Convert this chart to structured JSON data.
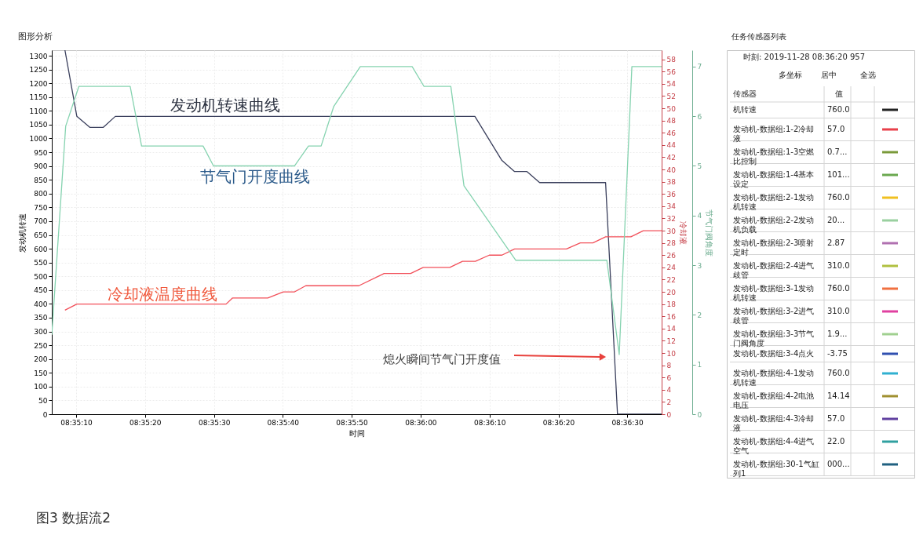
{
  "chart_data": [
    {
      "type": "line",
      "title": "图形分析",
      "xlabel": "时间",
      "ylabel": "发动机转速",
      "y2label": "冷却液",
      "y3label": "节气门阀角度",
      "xlim": [
        8.58513,
        8.60972
      ],
      "xticks": [
        {
          "value": 8.58611,
          "label": "08:35:10"
        },
        {
          "value": 8.58889,
          "label": "08:35:20"
        },
        {
          "value": 8.59167,
          "label": "08:35:30"
        },
        {
          "value": 8.59444,
          "label": "08:35:40"
        },
        {
          "value": 8.59722,
          "label": "08:35:50"
        },
        {
          "value": 8.6,
          "label": "08:36:00"
        },
        {
          "value": 8.60278,
          "label": "08:36:10"
        },
        {
          "value": 8.60556,
          "label": "08:36:20"
        },
        {
          "value": 8.60833,
          "label": "08:36:30"
        }
      ],
      "ylim": [
        0,
        1320
      ],
      "yticks": [
        0,
        50,
        100,
        150,
        200,
        250,
        300,
        350,
        400,
        450,
        500,
        550,
        600,
        650,
        700,
        750,
        800,
        850,
        900,
        950,
        1000,
        1050,
        1100,
        1150,
        1200,
        1250,
        1300
      ],
      "y2lim": [
        0,
        59.5
      ],
      "y2ticks": [
        0,
        2,
        4,
        6,
        8,
        10,
        12,
        14,
        16,
        18,
        20,
        22,
        24,
        26,
        28,
        30,
        32,
        34,
        36,
        38,
        40,
        42,
        44,
        46,
        48,
        50,
        52,
        54,
        56,
        58
      ],
      "y3lim": [
        0,
        7.33
      ],
      "y3ticks": [
        0,
        1,
        2,
        3,
        4,
        5,
        6,
        7
      ],
      "grid": true,
      "series": [
        {
          "name": "发动机转速曲线",
          "color": "#3a3f5c",
          "x": [
            8.58566,
            8.58614,
            8.58667,
            8.5872,
            8.58769,
            8.60219,
            8.60328,
            8.60379,
            8.60429,
            8.6048,
            8.60746,
            8.60794,
            8.60972
          ],
          "values": [
            1320,
            1080,
            1040,
            1040,
            1080,
            1080,
            920,
            880,
            880,
            840,
            840,
            0,
            0
          ]
        },
        {
          "name": "冷却液温度曲线",
          "color": "#f2505a",
          "axis": "y2",
          "x": [
            8.58566,
            8.58614,
            8.59216,
            8.59242,
            8.59384,
            8.59446,
            8.59492,
            8.59537,
            8.59751,
            8.59853,
            8.5996,
            8.60011,
            8.60118,
            8.60169,
            8.60221,
            8.60277,
            8.60328,
            8.60379,
            8.60588,
            8.60644,
            8.60695,
            8.60746,
            8.60848,
            8.60898,
            8.60972
          ],
          "values": [
            17,
            18,
            18,
            19,
            19,
            20,
            20,
            21,
            21,
            23,
            23,
            24,
            24,
            25,
            25,
            26,
            26,
            27,
            27,
            28,
            28,
            29,
            29,
            30,
            30
          ]
        },
        {
          "name": "节气门开度曲线",
          "color": "#86d3b0",
          "axis": "y3",
          "x": [
            8.58513,
            8.58569,
            8.58622,
            8.58829,
            8.58875,
            8.59123,
            8.59165,
            8.59492,
            8.59548,
            8.59599,
            8.5965,
            8.59757,
            8.59966,
            8.60014,
            8.60122,
            8.60175,
            8.60384,
            8.60751,
            8.60801,
            8.60852,
            8.60972
          ],
          "values": [
            1.6,
            5.8,
            6.6,
            6.6,
            5.4,
            5.4,
            5.0,
            5.0,
            5.4,
            5.4,
            6.2,
            7.0,
            7.0,
            6.6,
            6.6,
            4.6,
            3.1,
            3.1,
            1.2,
            7.0,
            7.0
          ]
        }
      ],
      "annotations": [
        "熄火瞬间节气门开度值",
        "图3 数据流2"
      ]
    },
    {
      "type": "other",
      "title": "任务传感器列表",
      "subtitle": "时刻: 2019-11-28 08:36:20 957",
      "annotations": [
        "多坐标",
        "居中",
        "全选",
        "传感器",
        "值"
      ],
      "categories": [
        "机转速",
        "发动机-数据组:1-2冷却液",
        "发动机-数据组:1-3空燃比控制",
        "发动机-数据组:1-4基本设定",
        "发动机-数据组:2-1发动机转速",
        "发动机-数据组:2-2发动机负载",
        "发动机-数据组:2-3喷射定时",
        "发动机-数据组:2-4进气歧管",
        "发动机-数据组:3-1发动机转速",
        "发动机-数据组:3-2进气歧管",
        "发动机-数据组:3-3节气门阀角度",
        "发动机-数据组:3-4点火",
        "发动机-数据组:4-1发动机转速",
        "发动机-数据组:4-2电池电压",
        "发动机-数据组:4-3冷却液",
        "发动机-数据组:4-4进气空气",
        "发动机-数据组:30-1气缸列1"
      ],
      "value_labels": [
        "760.0",
        "57.0",
        "0.7...",
        "101...",
        "760.0",
        "20...",
        "2.87",
        "310.0",
        "760.0",
        "310.0",
        "1.9...",
        "-3.75",
        "760.0",
        "14.14",
        "57.0",
        "22.0",
        "000..."
      ],
      "colors": [
        "#222222",
        "#e8404a",
        "#7a9a3a",
        "#6aa84f",
        "#f0c020",
        "#9ad0a0",
        "#b070b0",
        "#b0c040",
        "#f07040",
        "#e040a0",
        "#a0d090",
        "#3050b0",
        "#30b0d0",
        "#a09030",
        "#6040a0",
        "#30a0a0",
        "#206080"
      ]
    }
  ]
}
